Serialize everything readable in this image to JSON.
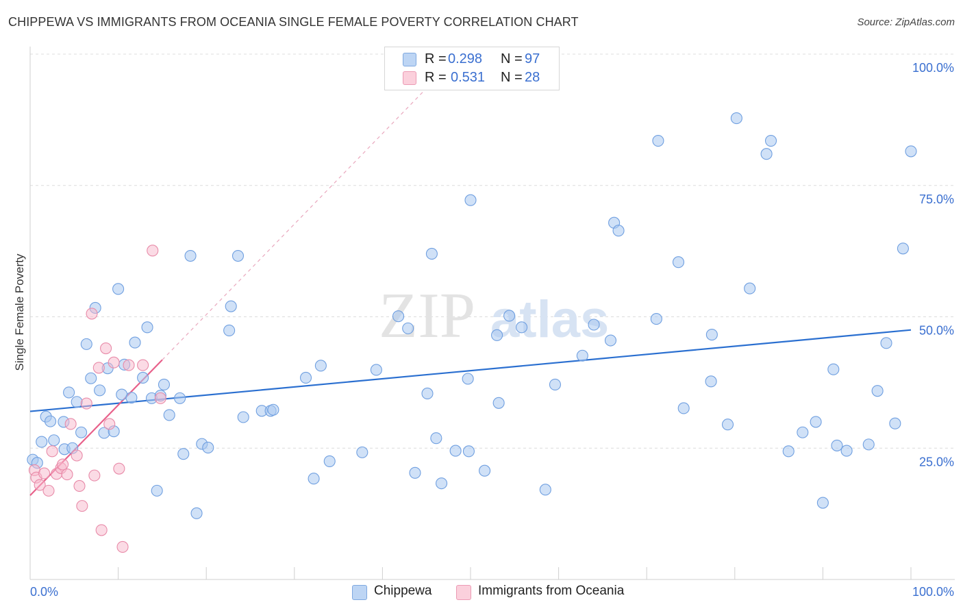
{
  "header": {
    "title": "CHIPPEWA VS IMMIGRANTS FROM OCEANIA SINGLE FEMALE POVERTY CORRELATION CHART",
    "source": "Source: ZipAtlas.com"
  },
  "watermark": {
    "part1": "ZIP",
    "part2": "atlas"
  },
  "legend": {
    "rows": [
      {
        "r_label": "R =",
        "r_value": "0.298",
        "n_label": "N =",
        "n_value": "97",
        "color": "#a9c8f0"
      },
      {
        "r_label": "R =",
        "r_value": "0.531",
        "n_label": "N =",
        "n_value": "28",
        "color": "#f7b8cb"
      }
    ]
  },
  "bottom_legend": {
    "items": [
      {
        "label": "Chippewa",
        "color": "#a9c8f0"
      },
      {
        "label": "Immigrants from Oceania",
        "color": "#f7b8cb"
      }
    ]
  },
  "colors": {
    "blue_fill": "#a9c8f0",
    "blue_stroke": "#6f9fe0",
    "blue_line": "#2a6fd0",
    "pink_fill": "#f7b8cb",
    "pink_stroke": "#e88aa8",
    "pink_line": "#e8608a",
    "tick_label": "#3a6fd0"
  },
  "chart_data": {
    "type": "scatter",
    "title": "CHIPPEWA VS IMMIGRANTS FROM OCEANIA SINGLE FEMALE POVERTY CORRELATION CHART",
    "xlabel": "",
    "ylabel": "Single Female Poverty",
    "xlim": [
      0,
      100
    ],
    "ylim": [
      0,
      100
    ],
    "x_tick_labels": [
      {
        "value": 0,
        "label": "0.0%"
      },
      {
        "value": 100,
        "label": "100.0%"
      }
    ],
    "y_tick_labels": [
      {
        "value": 25,
        "label": "25.0%"
      },
      {
        "value": 50,
        "label": "50.0%"
      },
      {
        "value": 75,
        "label": "75.0%"
      },
      {
        "value": 100,
        "label": "100.0%"
      }
    ],
    "grid": true,
    "series": [
      {
        "name": "Chippewa",
        "r": 0.298,
        "n": 97,
        "trend": {
          "x": [
            0,
            100
          ],
          "y": [
            32.0,
            47.5
          ],
          "style": "solid"
        },
        "points": [
          [
            0.3,
            22.8
          ],
          [
            0.8,
            22.2
          ],
          [
            1.3,
            26.2
          ],
          [
            1.8,
            31.0
          ],
          [
            2.3,
            30.1
          ],
          [
            2.7,
            26.5
          ],
          [
            3.8,
            30.0
          ],
          [
            3.9,
            24.8
          ],
          [
            4.4,
            35.6
          ],
          [
            4.8,
            25.0
          ],
          [
            5.3,
            33.8
          ],
          [
            5.8,
            28.0
          ],
          [
            6.4,
            44.8
          ],
          [
            6.9,
            38.3
          ],
          [
            7.4,
            51.7
          ],
          [
            7.9,
            36.0
          ],
          [
            8.4,
            27.9
          ],
          [
            8.8,
            40.2
          ],
          [
            9.5,
            28.2
          ],
          [
            10.0,
            55.3
          ],
          [
            10.4,
            35.2
          ],
          [
            10.7,
            40.9
          ],
          [
            11.5,
            34.6
          ],
          [
            11.9,
            45.1
          ],
          [
            12.8,
            38.4
          ],
          [
            13.3,
            48.0
          ],
          [
            13.8,
            34.5
          ],
          [
            14.4,
            16.9
          ],
          [
            14.8,
            35.0
          ],
          [
            15.2,
            37.1
          ],
          [
            15.8,
            31.3
          ],
          [
            17.0,
            34.5
          ],
          [
            17.4,
            23.9
          ],
          [
            18.2,
            61.6
          ],
          [
            18.9,
            12.6
          ],
          [
            19.5,
            25.8
          ],
          [
            20.2,
            25.1
          ],
          [
            22.6,
            47.4
          ],
          [
            22.8,
            52.0
          ],
          [
            23.6,
            61.6
          ],
          [
            24.2,
            30.9
          ],
          [
            26.3,
            32.1
          ],
          [
            27.3,
            32.1
          ],
          [
            27.6,
            32.3
          ],
          [
            31.3,
            38.4
          ],
          [
            32.2,
            19.2
          ],
          [
            33.0,
            40.7
          ],
          [
            34.0,
            22.5
          ],
          [
            37.7,
            24.2
          ],
          [
            39.3,
            39.9
          ],
          [
            41.8,
            50.1
          ],
          [
            42.9,
            47.8
          ],
          [
            43.7,
            20.3
          ],
          [
            45.1,
            35.4
          ],
          [
            45.6,
            62.0
          ],
          [
            46.1,
            26.9
          ],
          [
            46.7,
            18.3
          ],
          [
            48.3,
            24.5
          ],
          [
            49.7,
            38.2
          ],
          [
            49.8,
            24.4
          ],
          [
            50.0,
            72.2
          ],
          [
            51.6,
            20.7
          ],
          [
            53.0,
            46.5
          ],
          [
            53.2,
            33.6
          ],
          [
            54.4,
            50.2
          ],
          [
            55.8,
            48.0
          ],
          [
            58.5,
            17.1
          ],
          [
            59.6,
            37.1
          ],
          [
            62.7,
            42.6
          ],
          [
            64.0,
            48.5
          ],
          [
            65.9,
            45.5
          ],
          [
            66.3,
            67.9
          ],
          [
            66.8,
            66.4
          ],
          [
            71.3,
            83.5
          ],
          [
            71.1,
            49.6
          ],
          [
            73.6,
            60.4
          ],
          [
            74.2,
            32.6
          ],
          [
            77.4,
            46.6
          ],
          [
            77.3,
            37.7
          ],
          [
            79.2,
            29.5
          ],
          [
            80.2,
            87.8
          ],
          [
            81.7,
            55.4
          ],
          [
            83.6,
            81.0
          ],
          [
            84.1,
            83.5
          ],
          [
            86.1,
            24.4
          ],
          [
            87.7,
            28.0
          ],
          [
            89.2,
            30.0
          ],
          [
            90.0,
            14.6
          ],
          [
            91.2,
            40.0
          ],
          [
            91.6,
            25.5
          ],
          [
            92.7,
            24.5
          ],
          [
            95.2,
            25.7
          ],
          [
            96.2,
            35.9
          ],
          [
            97.2,
            45.0
          ],
          [
            98.2,
            29.7
          ],
          [
            99.1,
            63.0
          ],
          [
            100.0,
            81.5
          ]
        ]
      },
      {
        "name": "Immigrants from Oceania",
        "r": 0.531,
        "n": 28,
        "trend": {
          "x": [
            0,
            15
          ],
          "y": [
            16.0,
            41.8
          ],
          "style": "solid"
        },
        "trend_extended": {
          "x": [
            15,
            45
          ],
          "y": [
            41.8,
            93.5
          ],
          "style": "dashed"
        },
        "points": [
          [
            0.5,
            20.8
          ],
          [
            0.7,
            19.4
          ],
          [
            1.1,
            18.0
          ],
          [
            1.6,
            20.2
          ],
          [
            2.1,
            16.9
          ],
          [
            2.5,
            24.4
          ],
          [
            3.0,
            20.1
          ],
          [
            3.5,
            21.2
          ],
          [
            3.7,
            21.9
          ],
          [
            4.2,
            20.0
          ],
          [
            4.6,
            29.6
          ],
          [
            5.3,
            23.6
          ],
          [
            5.6,
            17.8
          ],
          [
            5.9,
            14.0
          ],
          [
            6.4,
            33.5
          ],
          [
            7.0,
            50.6
          ],
          [
            7.3,
            19.8
          ],
          [
            7.8,
            40.3
          ],
          [
            8.1,
            9.4
          ],
          [
            8.6,
            44.0
          ],
          [
            9.0,
            29.6
          ],
          [
            9.5,
            41.3
          ],
          [
            10.1,
            21.1
          ],
          [
            10.5,
            6.2
          ],
          [
            11.2,
            40.8
          ],
          [
            12.8,
            40.8
          ],
          [
            13.9,
            62.6
          ],
          [
            14.8,
            34.5
          ]
        ]
      }
    ]
  }
}
